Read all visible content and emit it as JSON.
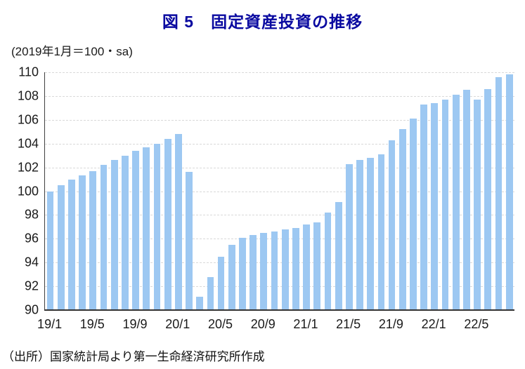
{
  "title": "図 5　固定資産投資の推移",
  "subtitle": "(2019年1月＝100・sa)",
  "source": "（出所）国家統計局より第一生命経済研究所作成",
  "colors": {
    "title": "#0909A0",
    "bar": "#9DC8F2",
    "gridline": "#D9D9D9",
    "axis": "#404040",
    "text": "#1A1A1A"
  },
  "chart_data": {
    "type": "bar",
    "title": "図 5　固定資産投資の推移",
    "subtitle": "(2019年1月＝100・sa)",
    "categories": [
      "19/1",
      "19/2",
      "19/3",
      "19/4",
      "19/5",
      "19/6",
      "19/7",
      "19/8",
      "19/9",
      "19/10",
      "19/11",
      "19/12",
      "20/1",
      "20/2",
      "20/3",
      "20/4",
      "20/5",
      "20/6",
      "20/7",
      "20/8",
      "20/9",
      "20/10",
      "20/11",
      "20/12",
      "21/1",
      "21/2",
      "21/3",
      "21/4",
      "21/5",
      "21/6",
      "21/7",
      "21/8",
      "21/9",
      "21/10",
      "21/11",
      "21/12",
      "22/1",
      "22/2",
      "22/3",
      "22/4",
      "22/5",
      "22/6",
      "22/7",
      "22/8"
    ],
    "values": [
      100.0,
      100.5,
      101.0,
      101.3,
      101.7,
      102.2,
      102.6,
      103.0,
      103.4,
      103.7,
      104.0,
      104.4,
      104.8,
      101.6,
      91.1,
      92.8,
      94.5,
      95.5,
      96.1,
      96.3,
      96.5,
      96.6,
      96.8,
      96.9,
      97.2,
      97.4,
      98.2,
      99.1,
      102.3,
      102.6,
      102.8,
      103.1,
      104.3,
      105.2,
      106.1,
      107.3,
      107.4,
      107.7,
      108.1,
      108.5,
      107.7,
      108.6,
      109.6,
      109.8
    ],
    "x_tick_labels": [
      "19/1",
      "19/5",
      "19/9",
      "20/1",
      "20/5",
      "20/9",
      "21/1",
      "21/5",
      "21/9",
      "22/1",
      "22/5"
    ],
    "x_tick_every": 4,
    "y_ticks": [
      90,
      92,
      94,
      96,
      98,
      100,
      102,
      104,
      106,
      108,
      110
    ],
    "ylim": [
      90,
      110
    ],
    "grid": "horizontal-dashed",
    "legend": "none",
    "bar_color": "#9DC8F2"
  }
}
